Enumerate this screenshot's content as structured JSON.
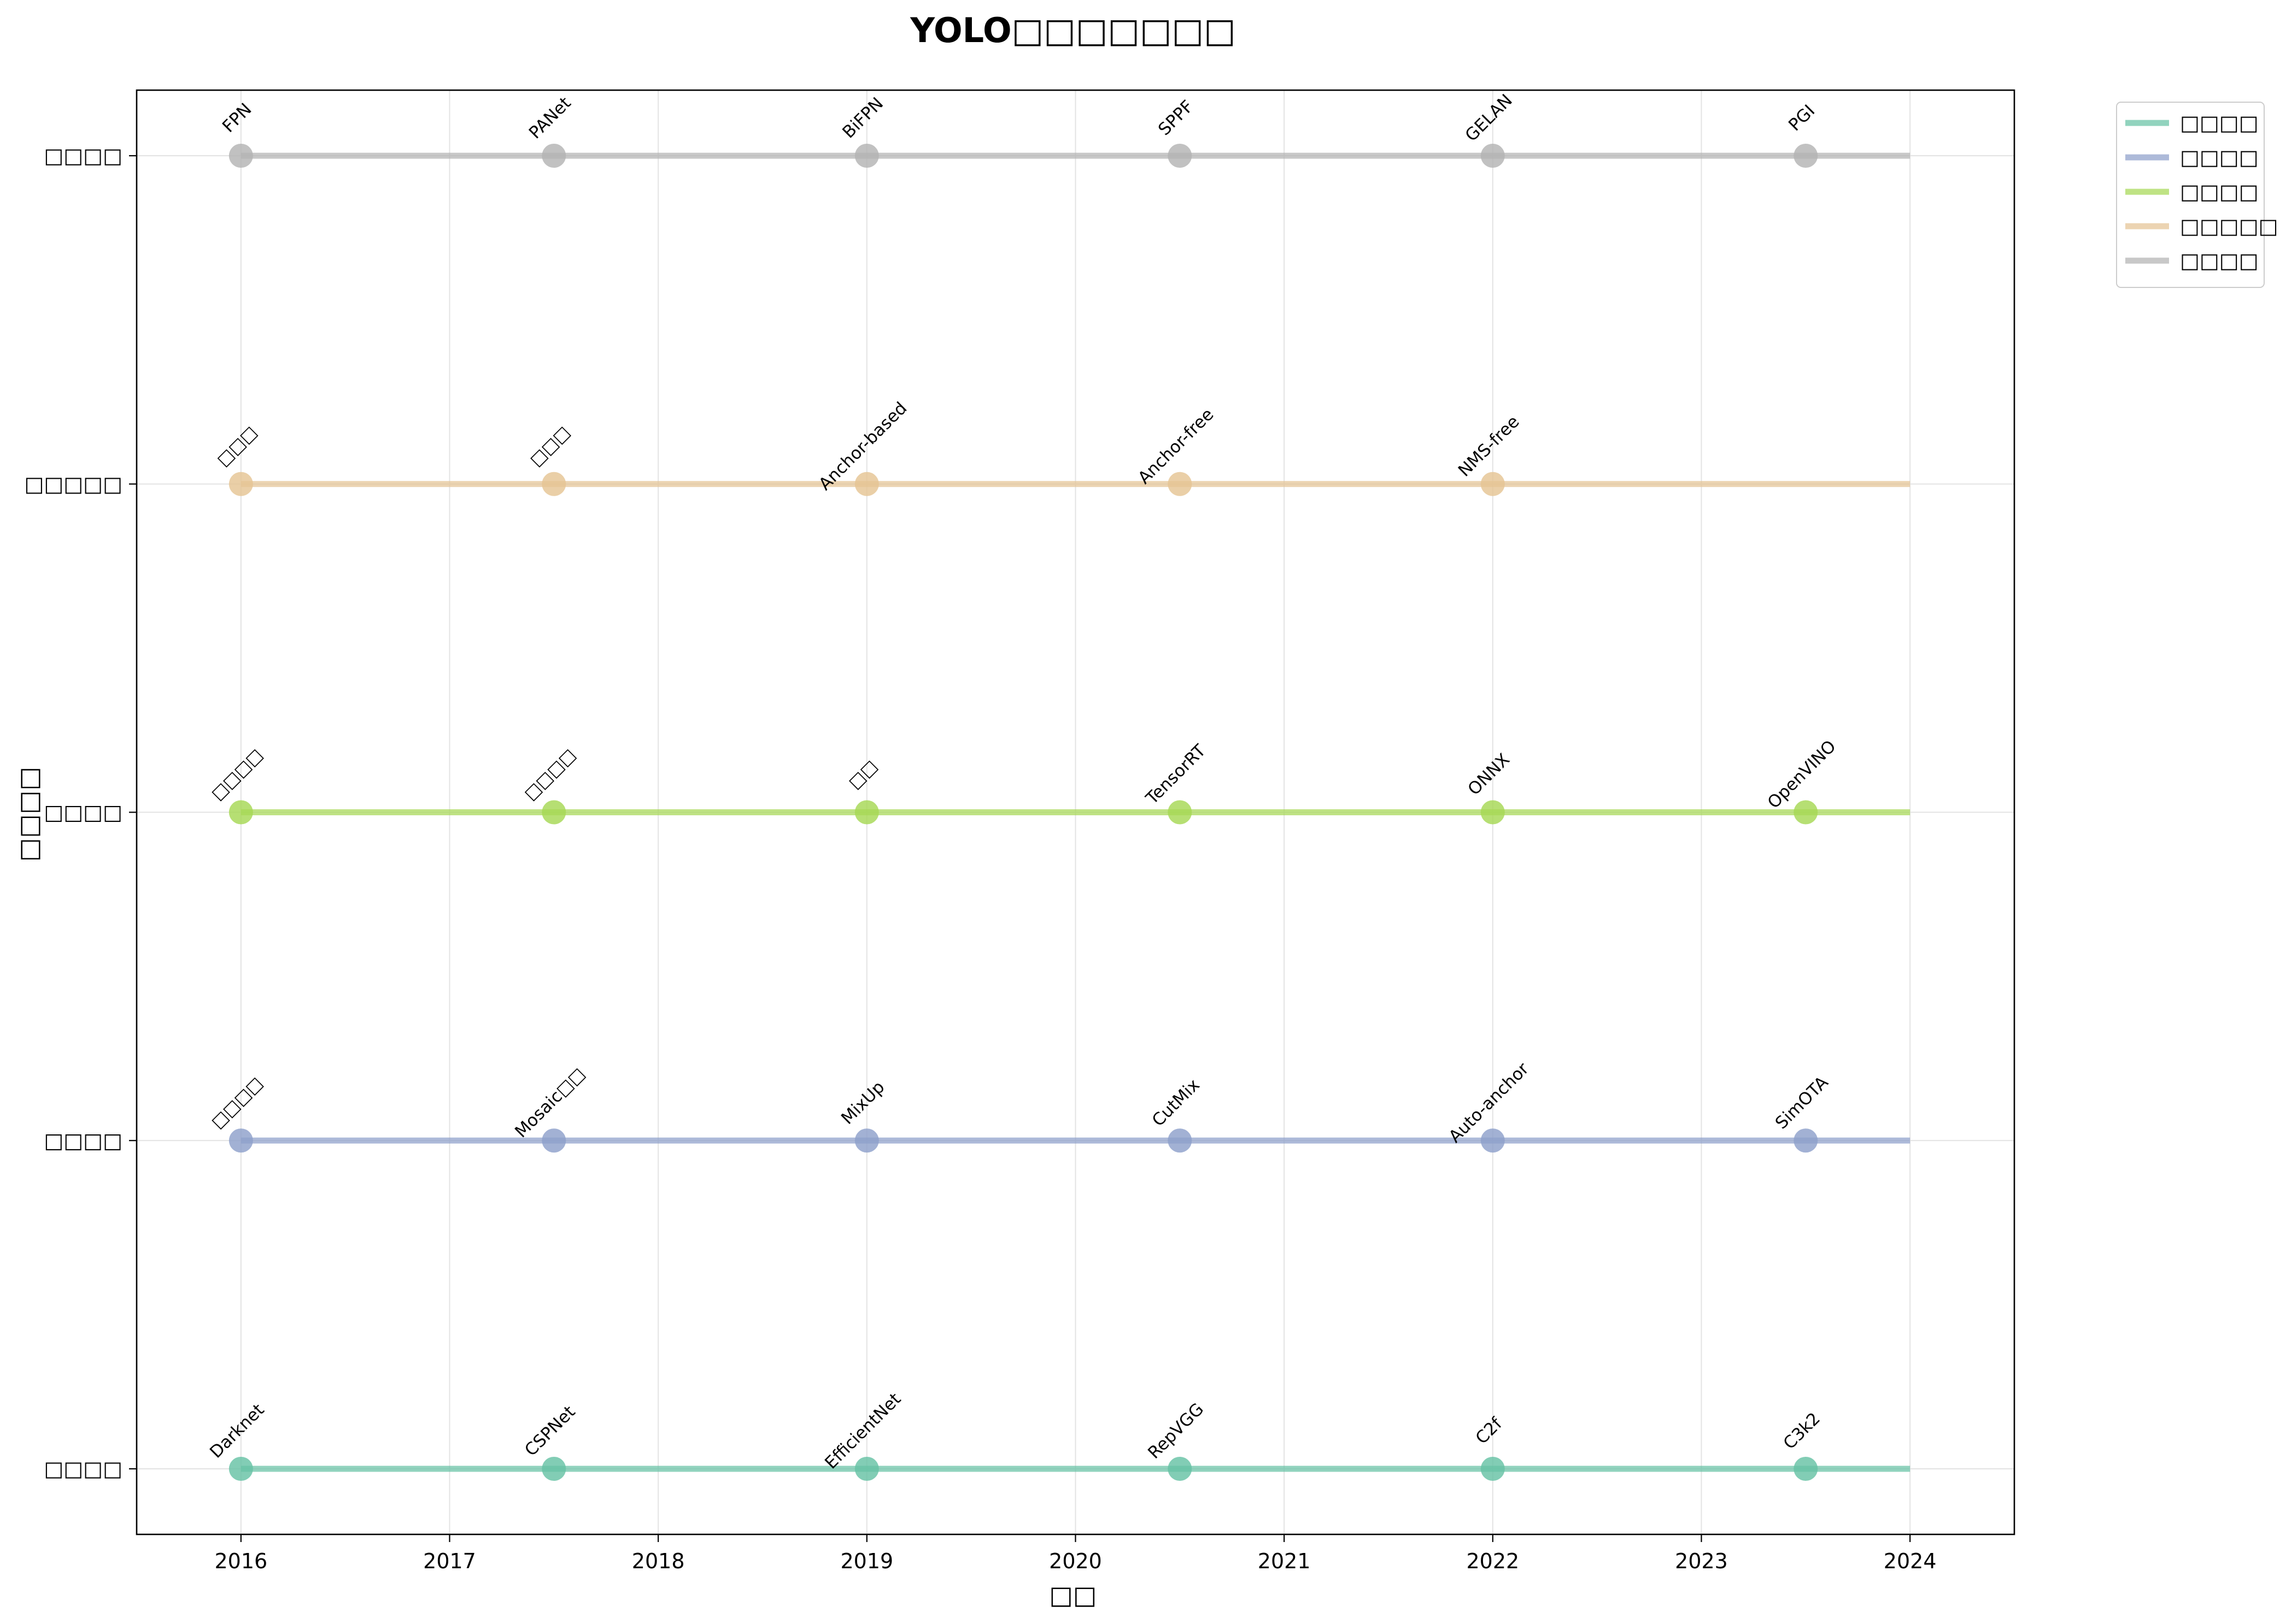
{
  "chart_data": {
    "type": "line",
    "title": "YOLO□□□□□□□",
    "xlabel": "□□",
    "ylabel": "□□□□",
    "xlim": [
      2015.5,
      2024.5
    ],
    "x_ticks": [
      2016,
      2017,
      2018,
      2019,
      2020,
      2021,
      2022,
      2023,
      2024
    ],
    "y_categories": [
      "□□□□",
      "□□□□",
      "□□□□",
      "□□□□□",
      "□□□□"
    ],
    "grid": true,
    "legend_position": "outside-top-right",
    "series": [
      {
        "name": "□□□□",
        "color": "#66c2a5",
        "line_x": [
          2016,
          2024
        ],
        "points": [
          {
            "x": 2016,
            "label": "Darknet"
          },
          {
            "x": 2017.5,
            "label": "CSPNet"
          },
          {
            "x": 2019,
            "label": "EfficientNet"
          },
          {
            "x": 2020.5,
            "label": "RepVGG"
          },
          {
            "x": 2022,
            "label": "C2f"
          },
          {
            "x": 2023.5,
            "label": "C3k2"
          }
        ]
      },
      {
        "name": "□□□□",
        "color": "#8da0cb",
        "line_x": [
          2016,
          2024
        ],
        "points": [
          {
            "x": 2016,
            "label": "□□□□"
          },
          {
            "x": 2017.5,
            "label": "Mosaic□□"
          },
          {
            "x": 2019,
            "label": "MixUp"
          },
          {
            "x": 2020.5,
            "label": "CutMix"
          },
          {
            "x": 2022,
            "label": "Auto-anchor"
          },
          {
            "x": 2023.5,
            "label": "SimOTA"
          }
        ]
      },
      {
        "name": "□□□□",
        "color": "#a6d854",
        "line_x": [
          2016,
          2024
        ],
        "points": [
          {
            "x": 2016,
            "label": "□□□□"
          },
          {
            "x": 2017.5,
            "label": "□□□□"
          },
          {
            "x": 2019,
            "label": "□□"
          },
          {
            "x": 2020.5,
            "label": "TensorRT"
          },
          {
            "x": 2022,
            "label": "ONNX"
          },
          {
            "x": 2023.5,
            "label": "OpenVINO"
          }
        ]
      },
      {
        "name": "□□□□□",
        "color": "#e5c494",
        "line_x": [
          2016,
          2024
        ],
        "points": [
          {
            "x": 2016,
            "label": "□□□"
          },
          {
            "x": 2017.5,
            "label": "□□□"
          },
          {
            "x": 2019,
            "label": "Anchor-based"
          },
          {
            "x": 2020.5,
            "label": "Anchor-free"
          },
          {
            "x": 2022,
            "label": "NMS-free"
          }
        ]
      },
      {
        "name": "□□□□",
        "color": "#b3b3b3",
        "line_x": [
          2016,
          2024
        ],
        "points": [
          {
            "x": 2016,
            "label": "FPN"
          },
          {
            "x": 2017.5,
            "label": "PANet"
          },
          {
            "x": 2019,
            "label": "BiFPN"
          },
          {
            "x": 2020.5,
            "label": "SPPF"
          },
          {
            "x": 2022,
            "label": "GELAN"
          },
          {
            "x": 2023.5,
            "label": "PGI"
          }
        ]
      }
    ]
  }
}
